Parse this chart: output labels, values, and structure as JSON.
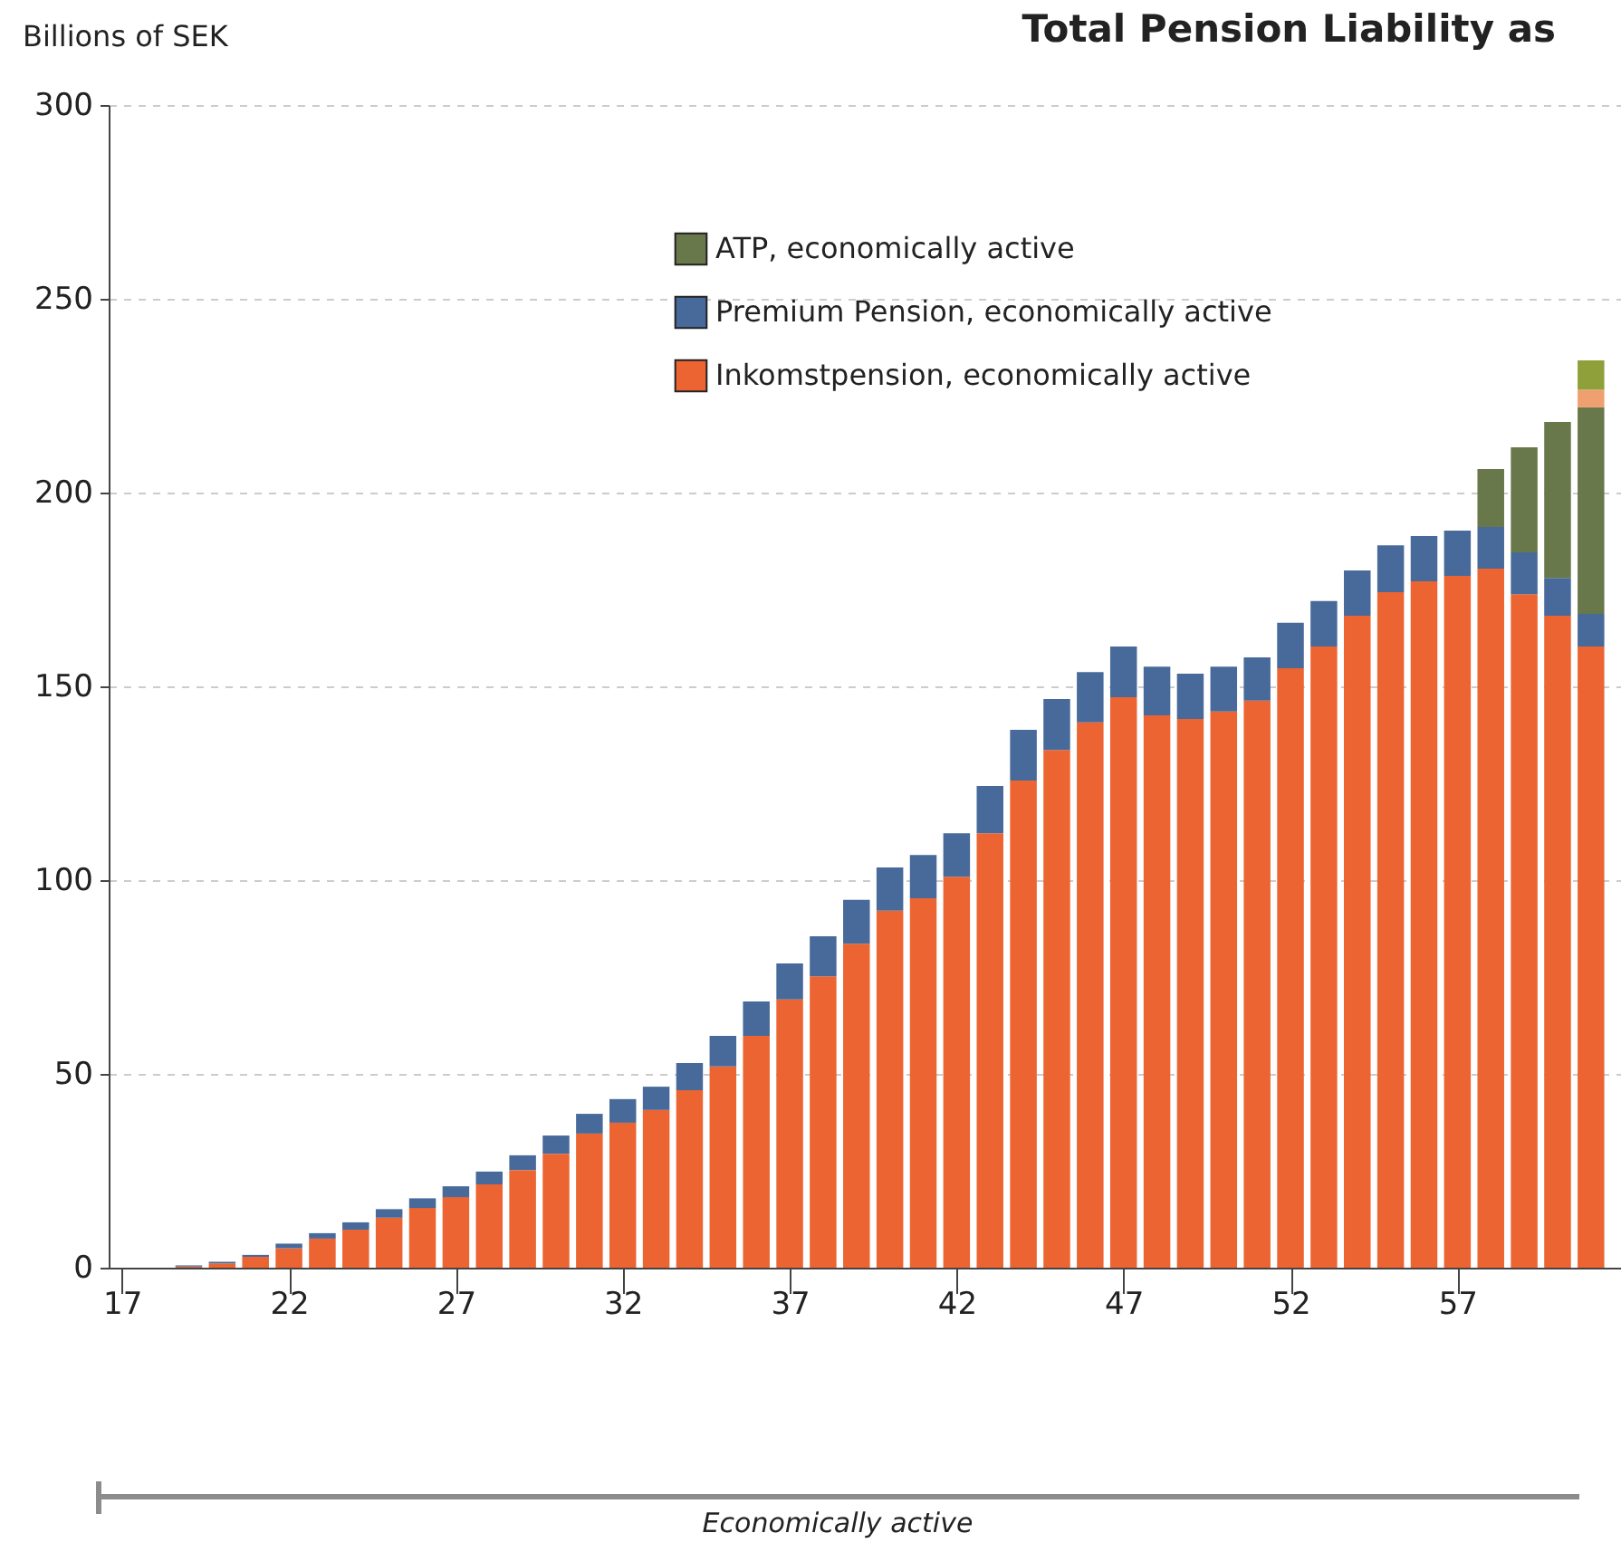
{
  "chart_data": {
    "type": "bar",
    "title": "Total Pension Liability as",
    "ylabel": "Billions of SEK",
    "annotations": [
      "Economically active"
    ],
    "x": [
      19,
      20,
      21,
      22,
      23,
      24,
      25,
      26,
      27,
      28,
      29,
      30,
      31,
      32,
      33,
      34,
      35,
      36,
      37,
      38,
      39,
      40,
      41,
      42,
      43,
      44,
      45,
      46,
      47,
      48,
      49,
      50,
      51,
      52,
      53,
      54,
      55,
      56,
      57,
      58,
      59,
      60,
      61
    ],
    "stacked": true,
    "xlim": [
      16.6,
      61.9
    ],
    "xticks": [
      17,
      22,
      27,
      32,
      37,
      42,
      47,
      52,
      57
    ],
    "ylim": [
      0,
      300
    ],
    "yticks": [
      0,
      50,
      100,
      150,
      200,
      250,
      300
    ],
    "grid": "y",
    "legend": "top",
    "series": [
      {
        "name": "Inkomstpension, economically active",
        "color": "#ec6432",
        "values": [
          0.3,
          1.1,
          2.8,
          5.0,
          7.5,
          9.8,
          12.9,
          15.4,
          18.2,
          21.5,
          25.2,
          29.4,
          34.6,
          37.4,
          40.7,
          45.8,
          51.9,
          59.8,
          69.2,
          75.2,
          83.6,
          92.1,
          95.3,
          100.9,
          112.1,
          125.7,
          133.6,
          140.7,
          147.2,
          142.5,
          141.6,
          143.5,
          146.3,
          154.7,
          160.3,
          168.2,
          174.3,
          177.1,
          178.5,
          180.4,
          173.8,
          168.2,
          160.3
        ]
      },
      {
        "name": "Premium Pension, economically active",
        "color": "#476a9a",
        "values": [
          0.3,
          0.4,
          0.5,
          1.2,
          1.4,
          1.9,
          2.2,
          2.5,
          2.8,
          3.3,
          3.8,
          4.7,
          5.1,
          6.1,
          6.0,
          7.0,
          7.9,
          8.9,
          9.3,
          10.3,
          11.3,
          11.2,
          11.2,
          11.2,
          12.2,
          13.1,
          13.1,
          13.0,
          13.1,
          12.6,
          11.7,
          11.6,
          11.2,
          11.7,
          11.7,
          11.7,
          12.1,
          11.7,
          11.7,
          10.7,
          10.8,
          9.8,
          8.4
        ]
      },
      {
        "name": "ATP, economically active",
        "color": "#68784a",
        "values": [
          null,
          null,
          null,
          null,
          null,
          null,
          null,
          null,
          null,
          null,
          null,
          null,
          null,
          null,
          null,
          null,
          null,
          null,
          null,
          null,
          null,
          null,
          null,
          null,
          null,
          null,
          null,
          null,
          null,
          null,
          null,
          null,
          null,
          null,
          null,
          null,
          null,
          null,
          null,
          15.0,
          27.1,
          40.2,
          53.3
        ]
      },
      {
        "color": "#f0a070",
        "values": [
          null,
          null,
          null,
          null,
          null,
          null,
          null,
          null,
          null,
          null,
          null,
          null,
          null,
          null,
          null,
          null,
          null,
          null,
          null,
          null,
          null,
          null,
          null,
          null,
          null,
          null,
          null,
          null,
          null,
          null,
          null,
          null,
          null,
          null,
          null,
          null,
          null,
          null,
          null,
          null,
          null,
          null,
          4.5
        ]
      },
      {
        "color": "#8fa03a",
        "values": [
          null,
          null,
          null,
          null,
          null,
          null,
          null,
          null,
          null,
          null,
          null,
          null,
          null,
          null,
          null,
          null,
          null,
          null,
          null,
          null,
          null,
          null,
          null,
          null,
          null,
          null,
          null,
          null,
          null,
          null,
          null,
          null,
          null,
          null,
          null,
          null,
          null,
          null,
          null,
          null,
          null,
          null,
          7.6
        ]
      }
    ]
  }
}
